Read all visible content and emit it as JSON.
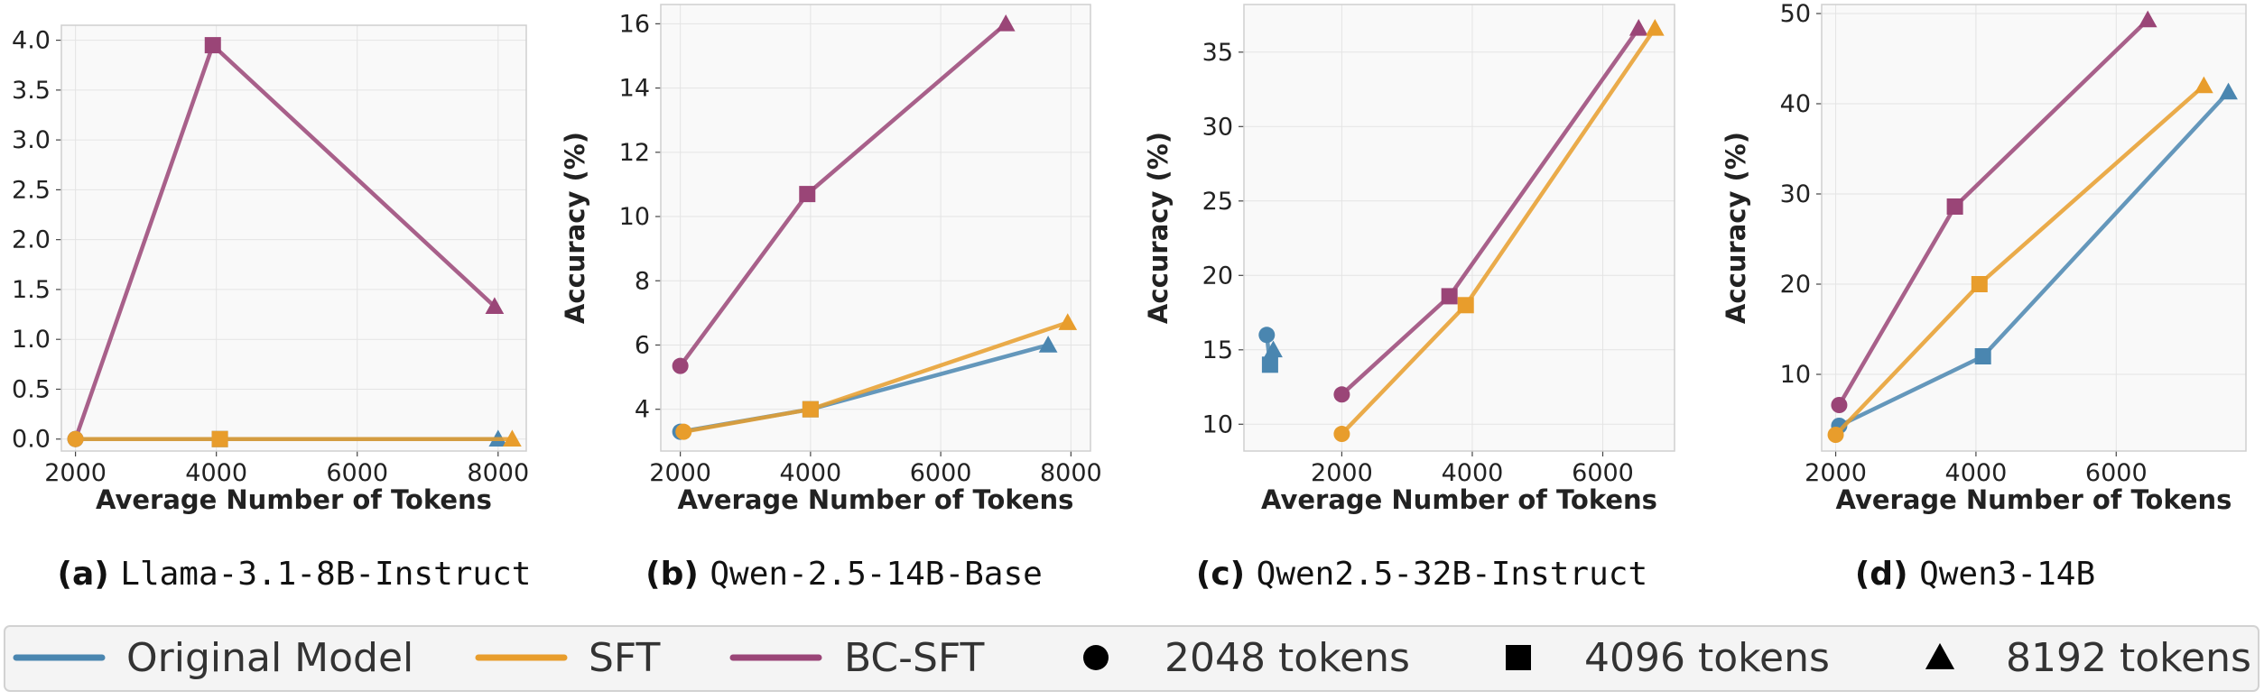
{
  "chart_data": [
    {
      "type": "line",
      "caption_letter": "(a)",
      "caption_name": "Llama-3.1-8B-Instruct",
      "xlabel": "Average Number of Tokens",
      "ylabel": "Accuracy (%)",
      "xlim": [
        1800,
        8400
      ],
      "ylim": [
        -0.12,
        4.15
      ],
      "xticks": [
        2000,
        4000,
        6000,
        8000
      ],
      "yticks": [
        "0.0",
        "0.5",
        "1.0",
        "1.5",
        "2.0",
        "2.5",
        "3.0",
        "3.5",
        "4.0"
      ],
      "grid": true,
      "series": [
        {
          "name": "Original Model",
          "points": [
            [
              2000,
              0.0
            ],
            [
              4050,
              0.0
            ],
            [
              8000,
              0.0
            ]
          ]
        },
        {
          "name": "SFT",
          "points": [
            [
              2000,
              0.0
            ],
            [
              4050,
              0.0
            ],
            [
              8200,
              0.0
            ]
          ]
        },
        {
          "name": "BC-SFT",
          "points": [
            [
              2000,
              0.0
            ],
            [
              3950,
              3.95
            ],
            [
              7950,
              1.33
            ]
          ]
        }
      ]
    },
    {
      "type": "line",
      "caption_letter": "(b)",
      "caption_name": "Qwen-2.5-14B-Base",
      "xlabel": "Average Number of Tokens",
      "ylabel": "Accuracy (%)",
      "xlim": [
        1700,
        8300
      ],
      "ylim": [
        2.7,
        16.6
      ],
      "xticks": [
        2000,
        4000,
        6000,
        8000
      ],
      "yticks": [
        "4",
        "6",
        "8",
        "10",
        "12",
        "14",
        "16"
      ],
      "grid": true,
      "series": [
        {
          "name": "Original Model",
          "points": [
            [
              2000,
              3.3
            ],
            [
              4000,
              4.0
            ],
            [
              7650,
              6.0
            ]
          ]
        },
        {
          "name": "SFT",
          "points": [
            [
              2050,
              3.3
            ],
            [
              4000,
              4.0
            ],
            [
              7950,
              6.7
            ]
          ]
        },
        {
          "name": "BC-SFT",
          "points": [
            [
              2000,
              5.35
            ],
            [
              3950,
              10.7
            ],
            [
              7000,
              16.0
            ]
          ]
        }
      ]
    },
    {
      "type": "line",
      "caption_letter": "(c)",
      "caption_name": "Qwen2.5-32B-Instruct",
      "xlabel": "Average Number of Tokens",
      "ylabel": "Accuracy (%)",
      "xlim": [
        500,
        7100
      ],
      "ylim": [
        8.2,
        38.2
      ],
      "xticks": [
        2000,
        4000,
        6000
      ],
      "yticks": [
        "10",
        "15",
        "20",
        "25",
        "30",
        "35"
      ],
      "grid": true,
      "series": [
        {
          "name": "Original Model",
          "points": [
            [
              850,
              16.0
            ],
            [
              900,
              14.0
            ],
            [
              950,
              15.0
            ]
          ]
        },
        {
          "name": "SFT",
          "points": [
            [
              2000,
              9.35
            ],
            [
              3900,
              18.0
            ],
            [
              6800,
              36.6
            ]
          ]
        },
        {
          "name": "BC-SFT",
          "points": [
            [
              2000,
              12.0
            ],
            [
              3650,
              18.6
            ],
            [
              6550,
              36.6
            ]
          ]
        }
      ]
    },
    {
      "type": "line",
      "caption_letter": "(d)",
      "caption_name": "Qwen3-14B",
      "xlabel": "Average Number of Tokens",
      "ylabel": "Accuracy (%)",
      "xlim": [
        1800,
        7850
      ],
      "ylim": [
        1.5,
        51.0
      ],
      "xticks": [
        2000,
        4000,
        6000
      ],
      "yticks": [
        "10",
        "20",
        "30",
        "40",
        "50"
      ],
      "grid": true,
      "series": [
        {
          "name": "Original Model",
          "points": [
            [
              2050,
              4.3
            ],
            [
              4100,
              12.0
            ],
            [
              7600,
              41.3
            ]
          ]
        },
        {
          "name": "SFT",
          "points": [
            [
              2000,
              3.3
            ],
            [
              4050,
              20.0
            ],
            [
              7250,
              42.0
            ]
          ]
        },
        {
          "name": "BC-SFT",
          "points": [
            [
              2050,
              6.6
            ],
            [
              3700,
              28.6
            ],
            [
              6450,
              49.3
            ]
          ]
        }
      ]
    }
  ],
  "colors": {
    "Original Model": "#4a86b0",
    "SFT": "#e89d2c",
    "BC-SFT": "#9a4577"
  },
  "marker_order": [
    "circle",
    "square",
    "triangle"
  ],
  "legend": {
    "placement": "bottom",
    "items": [
      {
        "kind": "line",
        "series": "Original Model",
        "label": "Original Model"
      },
      {
        "kind": "line",
        "series": "SFT",
        "label": "SFT"
      },
      {
        "kind": "line",
        "series": "BC-SFT",
        "label": "BC-SFT"
      },
      {
        "kind": "marker",
        "marker": "circle",
        "label": "2048 tokens"
      },
      {
        "kind": "marker",
        "marker": "square",
        "label": "4096 tokens"
      },
      {
        "kind": "marker",
        "marker": "triangle",
        "label": "8192 tokens"
      }
    ]
  }
}
